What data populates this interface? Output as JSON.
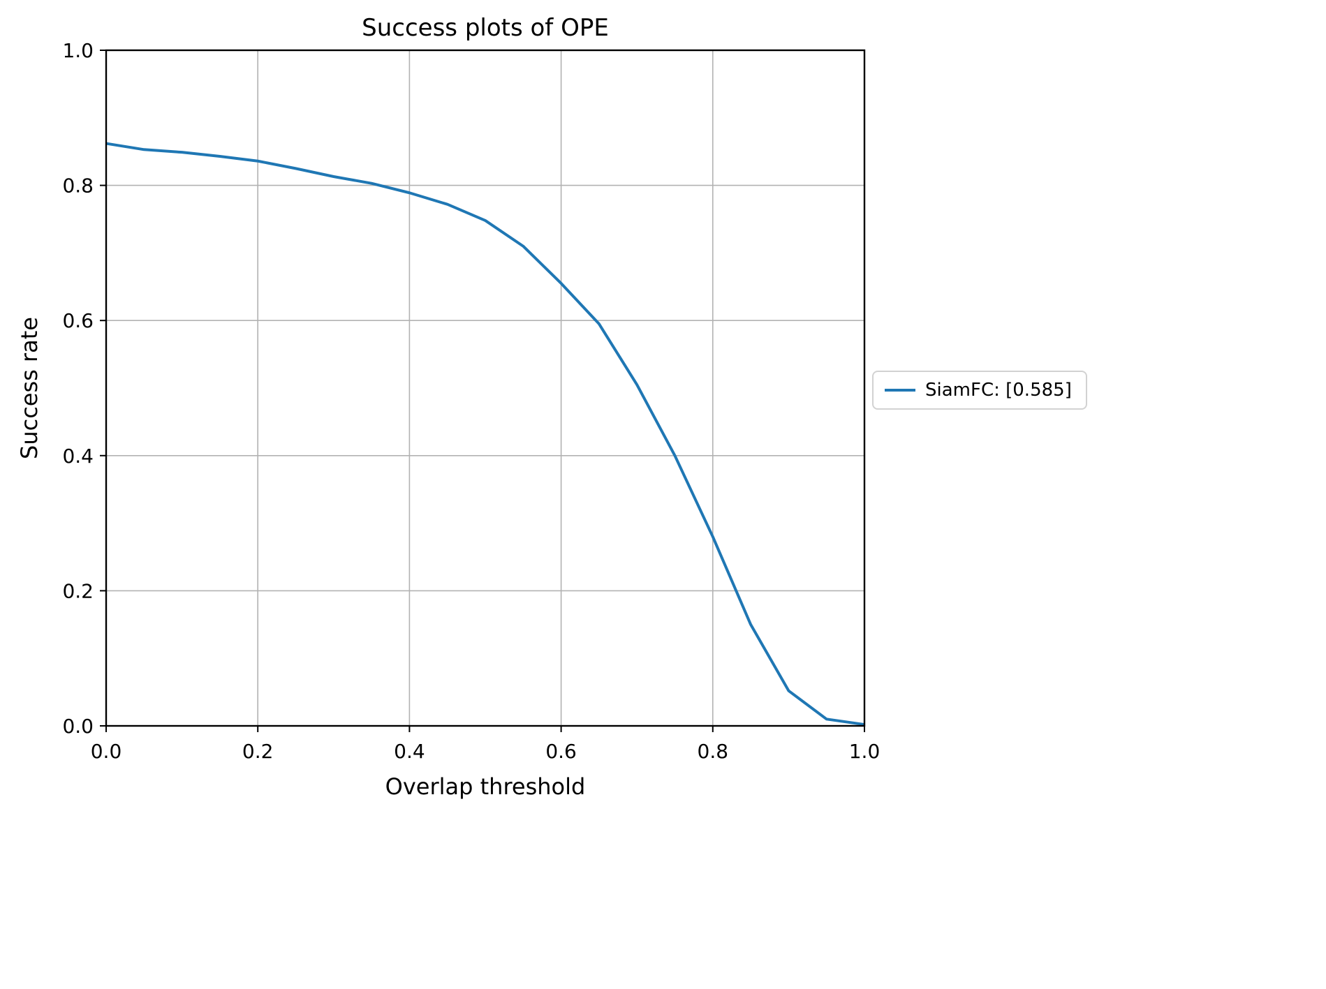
{
  "chart_data": {
    "type": "line",
    "title": "Success plots of OPE",
    "xlabel": "Overlap threshold",
    "ylabel": "Success rate",
    "xlim": [
      0.0,
      1.0
    ],
    "ylim": [
      0.0,
      1.0
    ],
    "grid": true,
    "legend_position": "center right, outside axes",
    "xtick_values": [
      0.0,
      0.2,
      0.4,
      0.6,
      0.8,
      1.0
    ],
    "xtick_labels": [
      "0.0",
      "0.2",
      "0.4",
      "0.6",
      "0.8",
      "1.0"
    ],
    "ytick_values": [
      0.0,
      0.2,
      0.4,
      0.6,
      0.8,
      1.0
    ],
    "ytick_labels": [
      "0.0",
      "0.2",
      "0.4",
      "0.6",
      "0.8",
      "1.0"
    ],
    "x": [
      0.0,
      0.05,
      0.1,
      0.15,
      0.2,
      0.25,
      0.3,
      0.35,
      0.4,
      0.45,
      0.5,
      0.55,
      0.6,
      0.65,
      0.7,
      0.75,
      0.8,
      0.85,
      0.9,
      0.95,
      1.0
    ],
    "series": [
      {
        "name": "SiamFC",
        "legend_label": "SiamFC: [0.585]",
        "auc_score": 0.585,
        "color": "#1f77b4",
        "values": [
          0.862,
          0.853,
          0.849,
          0.843,
          0.836,
          0.825,
          0.813,
          0.803,
          0.789,
          0.772,
          0.748,
          0.71,
          0.655,
          0.595,
          0.505,
          0.4,
          0.28,
          0.15,
          0.052,
          0.01,
          0.002
        ]
      }
    ]
  },
  "colors": {
    "line": "#1f77b4",
    "grid": "#b2b2b2",
    "axis": "#000000",
    "legend_border": "#d2d2d2",
    "background": "#ffffff"
  }
}
